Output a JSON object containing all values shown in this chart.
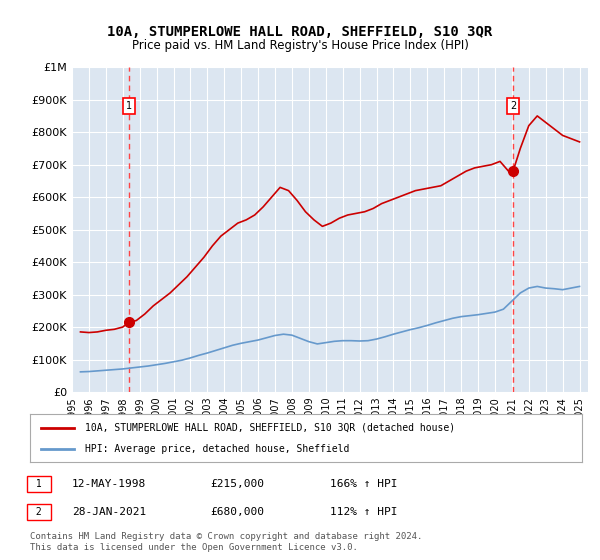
{
  "title": "10A, STUMPERLOWE HALL ROAD, SHEFFIELD, S10 3QR",
  "subtitle": "Price paid vs. HM Land Registry's House Price Index (HPI)",
  "legend_line1": "10A, STUMPERLOWE HALL ROAD, SHEFFIELD, S10 3QR (detached house)",
  "legend_line2": "HPI: Average price, detached house, Sheffield",
  "footer": "Contains HM Land Registry data © Crown copyright and database right 2024.\nThis data is licensed under the Open Government Licence v3.0.",
  "sale1_label": "1",
  "sale1_date": "12-MAY-1998",
  "sale1_price": "£215,000",
  "sale1_hpi": "166% ↑ HPI",
  "sale1_year": 1998.36,
  "sale1_value": 215000,
  "sale2_label": "2",
  "sale2_date": "28-JAN-2021",
  "sale2_price": "£680,000",
  "sale2_hpi": "112% ↑ HPI",
  "sale2_year": 2021.07,
  "sale2_value": 680000,
  "property_line_color": "#cc0000",
  "hpi_line_color": "#6699cc",
  "background_color": "#dce6f1",
  "plot_bg_color": "#dce6f1",
  "grid_color": "#ffffff",
  "dashed_line_color": "#ff4444",
  "ylim": [
    0,
    1000000
  ],
  "xlim": [
    1995,
    2025.5
  ],
  "yticks": [
    0,
    100000,
    200000,
    300000,
    400000,
    500000,
    600000,
    700000,
    800000,
    900000,
    1000000
  ],
  "ytick_labels": [
    "£0",
    "£100K",
    "£200K",
    "£300K",
    "£400K",
    "£500K",
    "£600K",
    "£700K",
    "£800K",
    "£900K",
    "£1M"
  ],
  "xticks": [
    1995,
    1996,
    1997,
    1998,
    1999,
    2000,
    2001,
    2002,
    2003,
    2004,
    2005,
    2006,
    2007,
    2008,
    2009,
    2010,
    2011,
    2012,
    2013,
    2014,
    2015,
    2016,
    2017,
    2018,
    2019,
    2020,
    2021,
    2022,
    2023,
    2024,
    2025
  ],
  "property_x": [
    1995.5,
    1996.0,
    1996.5,
    1997.0,
    1997.5,
    1998.0,
    1998.36,
    1998.8,
    1999.3,
    1999.8,
    2000.3,
    2000.8,
    2001.3,
    2001.8,
    2002.3,
    2002.8,
    2003.3,
    2003.8,
    2004.3,
    2004.8,
    2005.3,
    2005.8,
    2006.3,
    2006.8,
    2007.3,
    2007.8,
    2008.3,
    2008.8,
    2009.3,
    2009.8,
    2010.3,
    2010.8,
    2011.3,
    2011.8,
    2012.3,
    2012.8,
    2013.3,
    2013.8,
    2014.3,
    2014.8,
    2015.3,
    2015.8,
    2016.3,
    2016.8,
    2017.3,
    2017.8,
    2018.3,
    2018.8,
    2019.3,
    2019.8,
    2020.3,
    2020.8,
    2021.07,
    2021.5,
    2022.0,
    2022.5,
    2023.0,
    2023.5,
    2024.0,
    2024.5,
    2025.0
  ],
  "property_y": [
    185000,
    183000,
    185000,
    190000,
    193000,
    200000,
    215000,
    220000,
    240000,
    265000,
    285000,
    305000,
    330000,
    355000,
    385000,
    415000,
    450000,
    480000,
    500000,
    520000,
    530000,
    545000,
    570000,
    600000,
    630000,
    620000,
    590000,
    555000,
    530000,
    510000,
    520000,
    535000,
    545000,
    550000,
    555000,
    565000,
    580000,
    590000,
    600000,
    610000,
    620000,
    625000,
    630000,
    635000,
    650000,
    665000,
    680000,
    690000,
    695000,
    700000,
    710000,
    680000,
    680000,
    750000,
    820000,
    850000,
    830000,
    810000,
    790000,
    780000,
    770000
  ],
  "hpi_x": [
    1995.5,
    1996.0,
    1996.5,
    1997.0,
    1997.5,
    1998.0,
    1998.5,
    1999.0,
    1999.5,
    2000.0,
    2000.5,
    2001.0,
    2001.5,
    2002.0,
    2002.5,
    2003.0,
    2003.5,
    2004.0,
    2004.5,
    2005.0,
    2005.5,
    2006.0,
    2006.5,
    2007.0,
    2007.5,
    2008.0,
    2008.5,
    2009.0,
    2009.5,
    2010.0,
    2010.5,
    2011.0,
    2011.5,
    2012.0,
    2012.5,
    2013.0,
    2013.5,
    2014.0,
    2014.5,
    2015.0,
    2015.5,
    2016.0,
    2016.5,
    2017.0,
    2017.5,
    2018.0,
    2018.5,
    2019.0,
    2019.5,
    2020.0,
    2020.5,
    2021.0,
    2021.5,
    2022.0,
    2022.5,
    2023.0,
    2023.5,
    2024.0,
    2024.5,
    2025.0
  ],
  "hpi_y": [
    62000,
    63000,
    65000,
    67000,
    69000,
    71000,
    74000,
    77000,
    80000,
    84000,
    88000,
    93000,
    98000,
    105000,
    113000,
    120000,
    128000,
    136000,
    144000,
    150000,
    155000,
    160000,
    167000,
    174000,
    178000,
    175000,
    165000,
    155000,
    148000,
    152000,
    156000,
    158000,
    158000,
    157000,
    158000,
    163000,
    170000,
    178000,
    185000,
    192000,
    198000,
    205000,
    213000,
    220000,
    227000,
    232000,
    235000,
    238000,
    242000,
    246000,
    255000,
    280000,
    305000,
    320000,
    325000,
    320000,
    318000,
    315000,
    320000,
    325000
  ]
}
